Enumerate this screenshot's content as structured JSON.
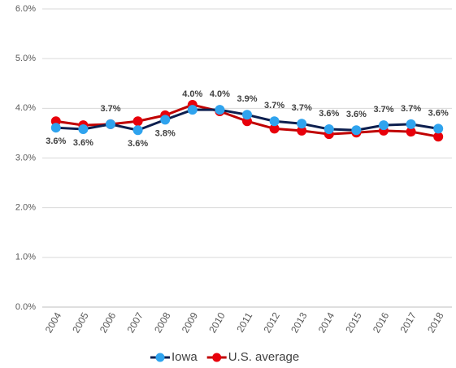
{
  "chart_data": {
    "type": "line",
    "categories": [
      "2004",
      "2005",
      "2006",
      "2007",
      "2008",
      "2009",
      "2010",
      "2011",
      "2012",
      "2013",
      "2014",
      "2015",
      "2016",
      "2017",
      "2018"
    ],
    "series": [
      {
        "name": "Iowa",
        "color": "#0d1f4f",
        "marker_color": "#2fa3ee",
        "values": [
          3.61,
          3.58,
          3.68,
          3.56,
          3.77,
          3.97,
          3.97,
          3.87,
          3.74,
          3.69,
          3.58,
          3.56,
          3.66,
          3.68,
          3.59
        ],
        "value_labels": [
          "3.6%",
          "3.6%",
          "3.7%",
          "3.6%",
          "3.8%",
          "4.0%",
          "4.0%",
          "3.9%",
          "3.7%",
          "3.7%",
          "3.6%",
          "3.6%",
          "3.7%",
          "3.7%",
          "3.6%"
        ]
      },
      {
        "name": "U.S. average",
        "color": "#c00000",
        "marker_color": "#e8000b",
        "values": [
          3.74,
          3.66,
          3.68,
          3.74,
          3.86,
          4.07,
          3.94,
          3.74,
          3.59,
          3.55,
          3.48,
          3.51,
          3.55,
          3.53,
          3.43
        ]
      }
    ],
    "ylim": [
      0,
      6
    ],
    "yticks": [
      {
        "value": 0,
        "label": "0.0%"
      },
      {
        "value": 1,
        "label": "1.0%"
      },
      {
        "value": 2,
        "label": "2.0%"
      },
      {
        "value": 3,
        "label": "3.0%"
      },
      {
        "value": 4,
        "label": "4.0%"
      },
      {
        "value": 5,
        "label": "5.0%"
      },
      {
        "value": 6,
        "label": "6.0%"
      }
    ],
    "grid": true
  }
}
